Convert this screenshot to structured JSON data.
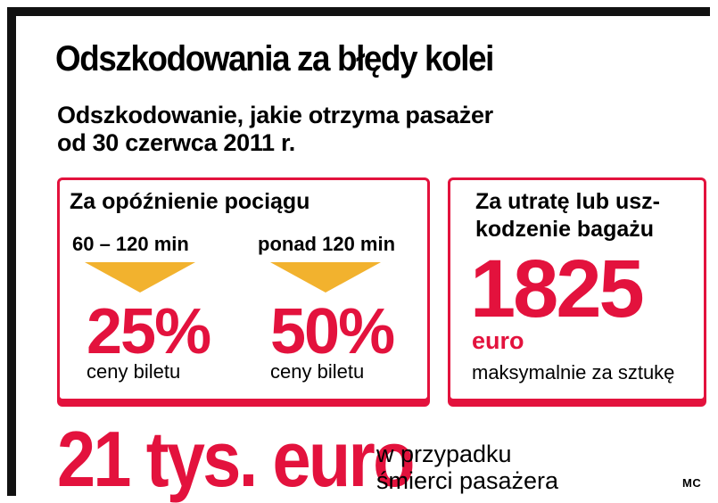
{
  "title": "Odszkodowania za błędy kolei",
  "subtitle": {
    "line1": "Odszkodowanie, jakie otrzyma pasażer",
    "line2": "od 30 czerwca 2011 r."
  },
  "delay_box": {
    "heading": "Za opóźnienie pociągu",
    "columns": [
      {
        "label": "60 – 120 min",
        "value": "25%",
        "caption": "ceny biletu"
      },
      {
        "label": "ponad 120 min",
        "value": "50%",
        "caption": "ceny biletu"
      }
    ]
  },
  "baggage_box": {
    "heading_line1": "Za utratę lub usz-",
    "heading_line2": "kodzenie bagażu",
    "amount": "1825",
    "unit": "euro",
    "caption": "maksymalnie za sztukę"
  },
  "death": {
    "amount": "21 tys. euro",
    "text_line1": "w przypadku",
    "text_line2": "śmierci pasażera"
  },
  "credit": "MC",
  "colors": {
    "accent": "#e3123d",
    "arrow": "#f2b22e",
    "frame": "#111111"
  }
}
